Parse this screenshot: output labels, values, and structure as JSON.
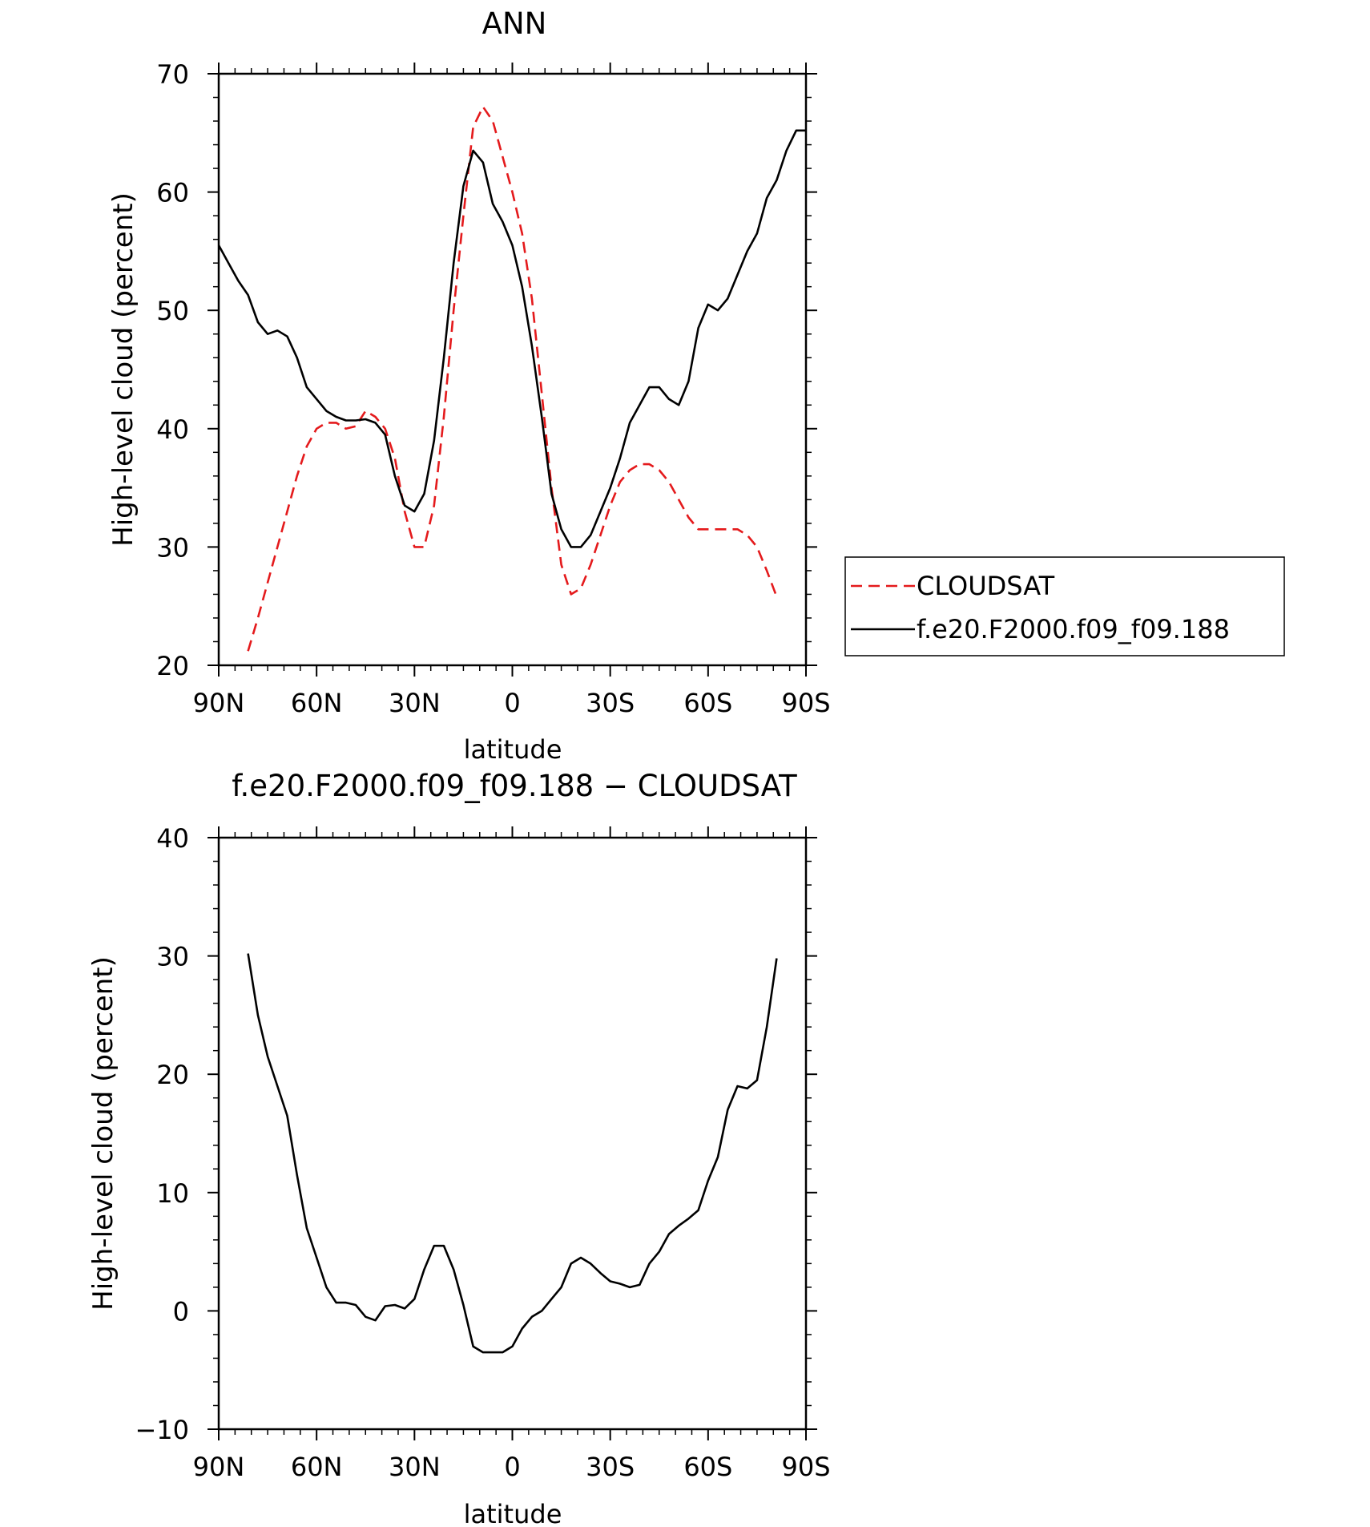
{
  "chart_data": [
    {
      "type": "line",
      "title": "ANN",
      "xlabel": "latitude",
      "ylabel": "High-level cloud (percent)",
      "xlim": [
        90,
        -90
      ],
      "ylim": [
        20,
        70
      ],
      "x_tick_values": [
        90,
        60,
        30,
        0,
        -30,
        -60,
        -90
      ],
      "x_tick_labels": [
        "90N",
        "60N",
        "30N",
        "0",
        "30S",
        "60S",
        "90S"
      ],
      "y_ticks": [
        20,
        30,
        40,
        50,
        60,
        70
      ],
      "legend_position": "right",
      "series": [
        {
          "name": "CLOUDSAT",
          "color": "#e41a1c",
          "dash": "dashed",
          "x": [
            81,
            78,
            75,
            72,
            69,
            66,
            63,
            60,
            57,
            54,
            51,
            48,
            45,
            42,
            39,
            36,
            33,
            30,
            27,
            24,
            21,
            18,
            15,
            12,
            9,
            6,
            3,
            0,
            -3,
            -6,
            -9,
            -12,
            -15,
            -18,
            -21,
            -24,
            -27,
            -30,
            -33,
            -36,
            -39,
            -42,
            -45,
            -48,
            -51,
            -54,
            -57,
            -60,
            -63,
            -66,
            -69,
            -72,
            -75,
            -78,
            -81
          ],
          "y": [
            21.2,
            24.0,
            27.0,
            30.0,
            33.0,
            36.0,
            38.5,
            40.0,
            40.5,
            40.5,
            40.0,
            40.2,
            41.5,
            41.0,
            40.0,
            37.5,
            33.0,
            30.0,
            30.0,
            33.5,
            41.0,
            50.0,
            58.0,
            65.5,
            67.2,
            66.0,
            63.0,
            60.0,
            56.5,
            51.0,
            43.0,
            35.0,
            28.5,
            26.0,
            26.5,
            28.5,
            31.0,
            33.5,
            35.5,
            36.5,
            37.0,
            37.0,
            36.5,
            35.5,
            34.0,
            32.5,
            31.5,
            31.5,
            31.5,
            31.5,
            31.5,
            31.0,
            30.0,
            28.0,
            25.8
          ]
        },
        {
          "name": "f.e20.F2000.f09_f09.188",
          "color": "#000000",
          "dash": "solid",
          "x": [
            90,
            87,
            84,
            81,
            78,
            75,
            72,
            69,
            66,
            63,
            60,
            57,
            54,
            51,
            48,
            45,
            42,
            39,
            36,
            33,
            30,
            27,
            24,
            21,
            18,
            15,
            12,
            9,
            6,
            3,
            0,
            -3,
            -6,
            -9,
            -12,
            -15,
            -18,
            -21,
            -24,
            -27,
            -30,
            -33,
            -36,
            -39,
            -42,
            -45,
            -48,
            -51,
            -54,
            -57,
            -60,
            -63,
            -66,
            -69,
            -72,
            -75,
            -78,
            -81,
            -84,
            -87,
            -90
          ],
          "y": [
            55.5,
            54.0,
            52.5,
            51.3,
            49.0,
            48.0,
            48.3,
            47.8,
            46.0,
            43.5,
            42.5,
            41.5,
            41.0,
            40.7,
            40.7,
            40.8,
            40.5,
            39.5,
            36.0,
            33.5,
            33.0,
            34.5,
            39.0,
            46.0,
            54.0,
            60.5,
            63.5,
            62.5,
            59.0,
            57.5,
            55.5,
            52.0,
            47.0,
            41.0,
            34.5,
            31.5,
            30.0,
            30.0,
            31.0,
            33.0,
            35.0,
            37.5,
            40.5,
            42.0,
            43.5,
            43.5,
            42.5,
            42.0,
            44.0,
            48.5,
            50.5,
            50.0,
            51.0,
            53.0,
            55.0,
            56.5,
            59.5,
            61.0,
            63.5,
            65.2,
            65.2
          ]
        }
      ]
    },
    {
      "type": "line",
      "title": "f.e20.F2000.f09_f09.188 − CLOUDSAT",
      "xlabel": "latitude",
      "ylabel": "High-level cloud (percent)",
      "xlim": [
        90,
        -90
      ],
      "ylim": [
        -10,
        40
      ],
      "x_tick_values": [
        90,
        60,
        30,
        0,
        -30,
        -60,
        -90
      ],
      "x_tick_labels": [
        "90N",
        "60N",
        "30N",
        "0",
        "30S",
        "60S",
        "90S"
      ],
      "y_ticks": [
        -10,
        0,
        10,
        20,
        30,
        40
      ],
      "y_tick_labels": [
        "−10",
        "0",
        "10",
        "20",
        "30",
        "40"
      ],
      "series": [
        {
          "color": "#000000",
          "dash": "solid",
          "x": [
            81,
            78,
            75,
            72,
            69,
            66,
            63,
            60,
            57,
            54,
            51,
            48,
            45,
            42,
            39,
            36,
            33,
            30,
            27,
            24,
            21,
            18,
            15,
            12,
            9,
            6,
            3,
            0,
            -3,
            -6,
            -9,
            -12,
            -15,
            -18,
            -21,
            -24,
            -27,
            -30,
            -33,
            -36,
            -39,
            -42,
            -45,
            -48,
            -51,
            -54,
            -57,
            -60,
            -63,
            -66,
            -69,
            -72,
            -75,
            -78,
            -81
          ],
          "y": [
            30.2,
            25.0,
            21.5,
            19.0,
            16.5,
            11.5,
            7.0,
            4.5,
            2.0,
            0.7,
            0.7,
            0.5,
            -0.5,
            -0.8,
            0.4,
            0.5,
            0.2,
            1.0,
            3.5,
            5.5,
            5.5,
            3.5,
            0.5,
            -3.0,
            -3.5,
            -3.5,
            -3.5,
            -3.0,
            -1.5,
            -0.5,
            0.0,
            1.0,
            2.0,
            4.0,
            4.5,
            4.0,
            3.2,
            2.5,
            2.3,
            2.0,
            2.2,
            4.0,
            5.0,
            6.5,
            7.2,
            7.8,
            8.5,
            11.0,
            13.0,
            17.0,
            19.0,
            18.8,
            19.5,
            24.0,
            29.8
          ]
        }
      ]
    }
  ],
  "legend": {
    "entries": [
      "CLOUDSAT",
      "f.e20.F2000.f09_f09.188"
    ]
  }
}
